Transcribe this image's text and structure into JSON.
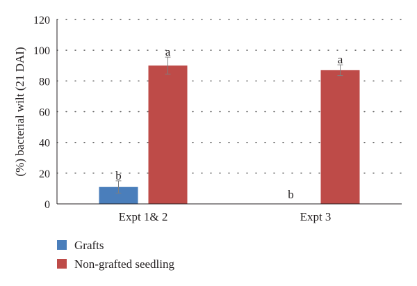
{
  "chart_data": {
    "type": "bar",
    "title": "",
    "xlabel": "",
    "ylabel": "(%) bacterial wilt (21 DAI)",
    "ylim": [
      0,
      120
    ],
    "yticks": [
      0,
      20,
      40,
      60,
      80,
      100,
      120
    ],
    "grid": "horizontal dotted",
    "legend_position": "bottom-left",
    "categories": [
      "Expt 1& 2",
      "Expt 3"
    ],
    "series": [
      {
        "name": "Grafts",
        "color": "#4a7ebb",
        "values": [
          11,
          0
        ],
        "errors": [
          4,
          null
        ],
        "letters": [
          "b",
          "b"
        ]
      },
      {
        "name": "Non-grafted seedling",
        "color": "#be4b48",
        "values": [
          90,
          87
        ],
        "errors": [
          5.5,
          3.5
        ],
        "letters": [
          "a",
          "a"
        ]
      }
    ]
  }
}
